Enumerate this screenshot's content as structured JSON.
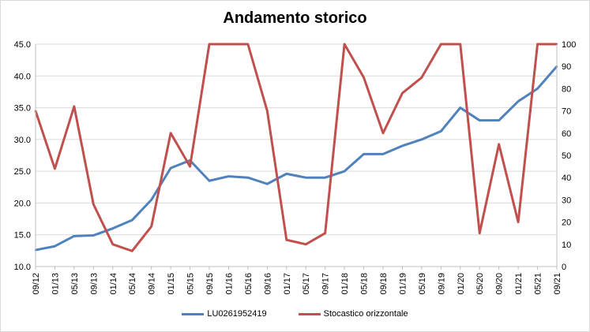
{
  "chart_data": {
    "type": "line",
    "title": "Andamento storico",
    "x": [
      "09/12",
      "01/13",
      "05/13",
      "09/13",
      "01/14",
      "05/14",
      "09/14",
      "01/15",
      "05/15",
      "09/15",
      "01/16",
      "05/16",
      "09/16",
      "01/17",
      "05/17",
      "09/17",
      "01/18",
      "05/18",
      "09/18",
      "01/19",
      "05/19",
      "09/19",
      "01/20",
      "05/20",
      "09/20",
      "01/21",
      "05/21",
      "09/21"
    ],
    "left_axis": {
      "ylim": [
        10,
        45
      ],
      "ticks": [
        "10.0",
        "15.0",
        "20.0",
        "25.0",
        "30.0",
        "35.0",
        "40.0",
        "45.0"
      ]
    },
    "right_axis": {
      "ylim": [
        0,
        100
      ],
      "ticks": [
        "0",
        "10",
        "20",
        "30",
        "40",
        "50",
        "60",
        "70",
        "80",
        "90",
        "100"
      ]
    },
    "series": [
      {
        "name": "LU0261952419",
        "axis": "left",
        "color": "#4f81bd",
        "values": [
          12.6,
          13.2,
          14.8,
          14.9,
          16.0,
          17.3,
          20.5,
          25.5,
          26.7,
          23.5,
          24.2,
          24.0,
          23.0,
          24.6,
          24.0,
          24.0,
          25.0,
          27.7,
          27.7,
          29.0,
          30.0,
          31.3,
          35.0,
          33.0,
          33.0,
          36.0,
          38.0,
          41.5
        ]
      },
      {
        "name": "Stocastico orizzontale",
        "axis": "right",
        "color": "#c0504d",
        "values": [
          70,
          44,
          72,
          28,
          10,
          7,
          18,
          60,
          45,
          100,
          100,
          100,
          70,
          12,
          10,
          15,
          100,
          85,
          60,
          78,
          85,
          100,
          100,
          15,
          55,
          20,
          100,
          100
        ]
      }
    ],
    "grid": true,
    "legend_position": "bottom"
  }
}
